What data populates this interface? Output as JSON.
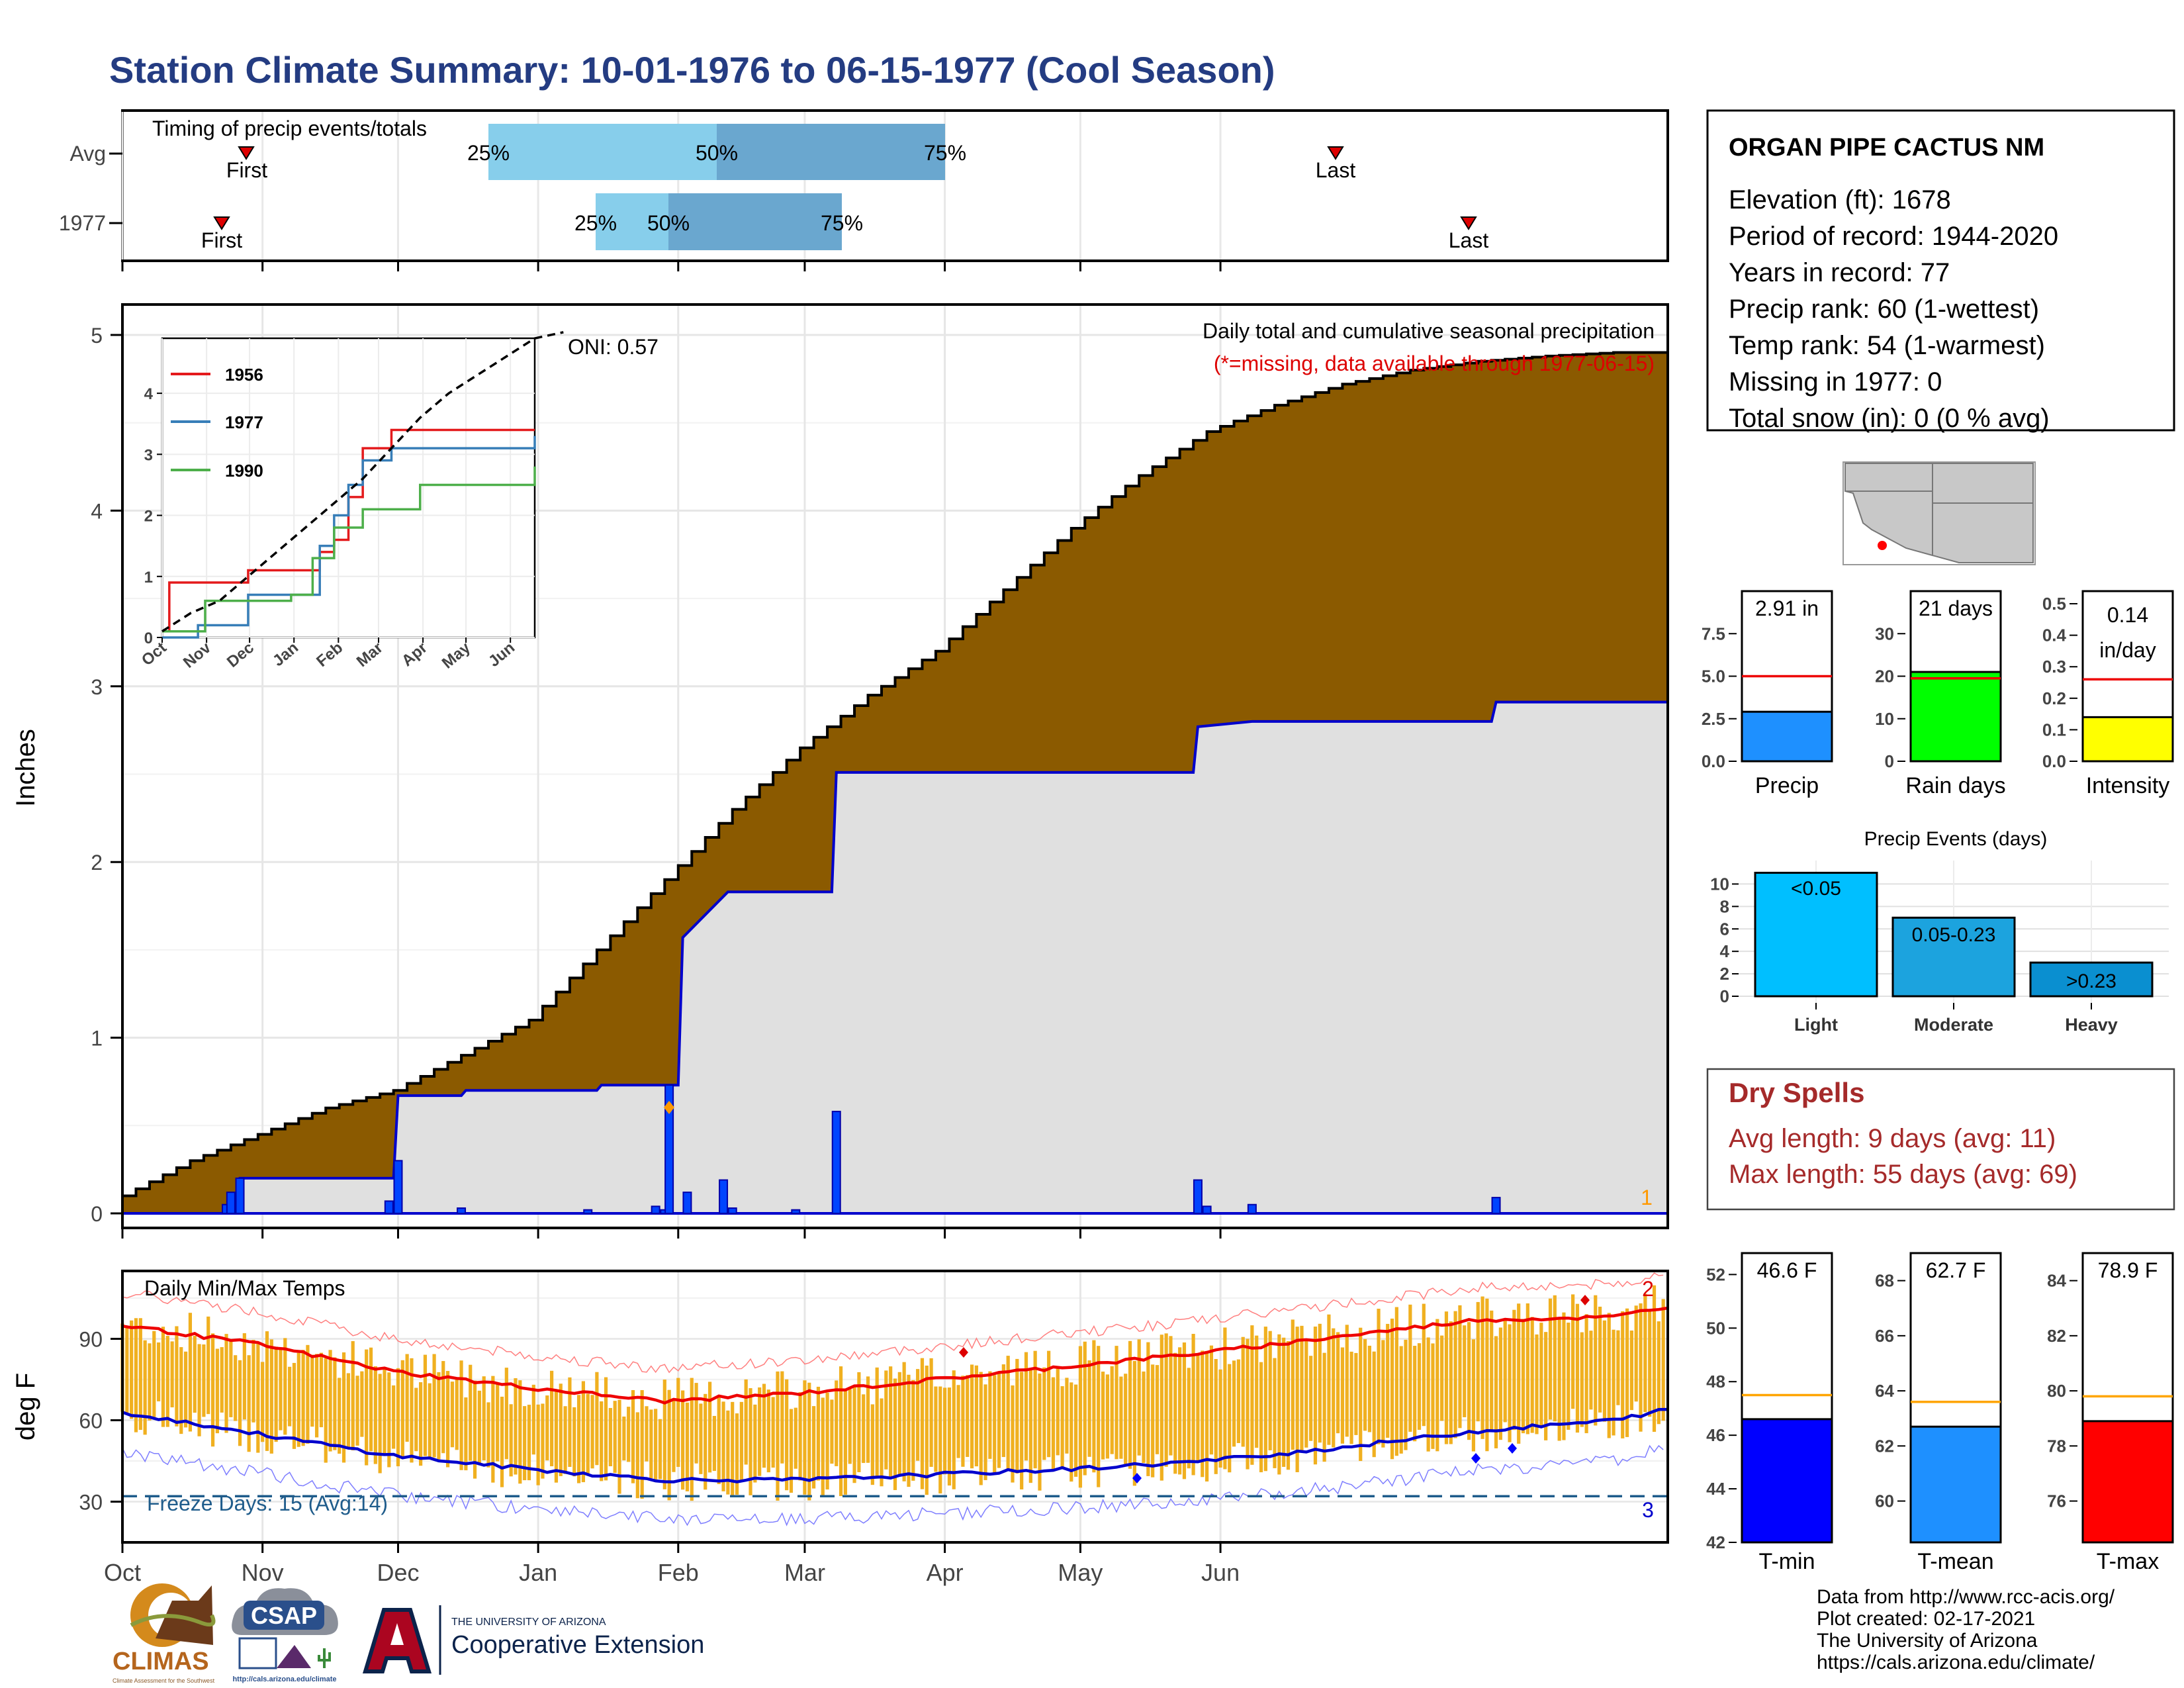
{
  "title": "Station Climate Summary: 10-01-1976 to 06-15-1977 (Cool Season)",
  "colors": {
    "title": "#243c82",
    "cum_fill": "#8b5a00",
    "cum_bg": "#e0e0e0",
    "station_line": "#0000cc",
    "daily_bar": "#0044ff",
    "temp_bar": "#f0b020",
    "tmax_line": "#ee0000",
    "tmin_line": "#0000cc",
    "dry_spell": "#a52a2a",
    "freeze": "#1f5c8b",
    "q1": "#87ceeb",
    "q2": "#6aa7cf"
  },
  "timing": {
    "title": "Timing of precip events/totals",
    "rows": [
      {
        "label": "Avg",
        "first": "First",
        "last": "Last",
        "p25": "25%",
        "p50": "50%",
        "p75": "75%"
      },
      {
        "label": "1977",
        "first": "First",
        "last": "Last",
        "p25": "25%",
        "p50": "50%",
        "p75": "75%"
      }
    ]
  },
  "main": {
    "ylabel": "Inches",
    "oni": "ONI: 0.57",
    "subtitle": "Daily total and cumulative seasonal precipitation",
    "missing_note": "(*=missing, data available through 1977-06-15)",
    "corner_count": "1",
    "yticks": [
      "0",
      "1",
      "2",
      "3",
      "4",
      "5"
    ]
  },
  "inset": {
    "legend": [
      "1956",
      "1977",
      "1990"
    ],
    "yticks": [
      "0",
      "1",
      "2",
      "3",
      "4"
    ],
    "xticks": [
      "Oct",
      "Nov",
      "Dec",
      "Jan",
      "Feb",
      "Mar",
      "Apr",
      "May",
      "Jun"
    ]
  },
  "temps": {
    "title": "Daily Min/Max Temps",
    "ylabel": "deg F",
    "freeze": "Freeze Days: 15 (Avg:14)",
    "count_top": "2",
    "count_bottom": "3",
    "yticks": [
      "30",
      "60",
      "90"
    ]
  },
  "months": [
    "Oct",
    "Nov",
    "Dec",
    "Jan",
    "Feb",
    "Mar",
    "Apr",
    "May",
    "Jun"
  ],
  "station": {
    "name": "ORGAN PIPE CACTUS NM",
    "lines": [
      "Elevation (ft): 1678",
      "Period of record: 1944-2020",
      "Years in record: 77",
      "Precip rank: 60 (1-wettest)",
      "Temp rank: 54 (1-warmest)",
      "Missing in 1977: 0",
      "Total snow (in): 0 (0 % avg)"
    ]
  },
  "mini_precip": {
    "label": "Precip",
    "value_label": "2.91 in",
    "ticks": [
      "0.0",
      "2.5",
      "5.0",
      "7.5"
    ],
    "color": "#1e90ff"
  },
  "mini_raindays": {
    "label": "Rain days",
    "value_label": "21 days",
    "ticks": [
      "0",
      "10",
      "20",
      "30"
    ],
    "color": "#00ff00"
  },
  "mini_intensity": {
    "label": "Intensity",
    "value_label": "0.14",
    "value_unit": "in/day",
    "ticks": [
      "0.0",
      "0.1",
      "0.2",
      "0.3",
      "0.4",
      "0.5"
    ],
    "color": "#ffff00"
  },
  "events": {
    "title": "Precip Events (days)",
    "ticks": [
      "0",
      "2",
      "4",
      "6",
      "8",
      "10"
    ],
    "bars": [
      {
        "cat": "Light",
        "label": "<0.05",
        "value": 11,
        "color": "#00bfff"
      },
      {
        "cat": "Moderate",
        "label": "0.05-0.23",
        "value": 7,
        "color": "#1ca3de"
      },
      {
        "cat": "Heavy",
        "label": ">0.23",
        "value": 3,
        "color": "#0a8fd0"
      }
    ]
  },
  "dry": {
    "title": "Dry Spells",
    "avg": "Avg length: 9 days (avg: 11)",
    "max": "Max length: 55 days (avg: 69)"
  },
  "tbars": [
    {
      "label": "T-min",
      "value_label": "46.6 F",
      "ticks": [
        "42",
        "44",
        "46",
        "48",
        "50",
        "52"
      ],
      "color": "#0000ff"
    },
    {
      "label": "T-mean",
      "value_label": "62.7 F",
      "ticks": [
        "60",
        "62",
        "64",
        "66",
        "68"
      ],
      "color": "#1e90ff"
    },
    {
      "label": "T-max",
      "value_label": "78.9 F",
      "ticks": [
        "76",
        "78",
        "80",
        "82",
        "84"
      ],
      "color": "#ff0000"
    }
  ],
  "credits": [
    "Data from http://www.rcc-acis.org/",
    "Plot created: 02-17-2021",
    "The University of Arizona",
    "https://cals.arizona.edu/climate/"
  ],
  "logos": {
    "climas": "CLIMAS",
    "climas_sub": "Climate Assessment for the Southwest",
    "csap": "CSAP",
    "csap_url": "http://cals.arizona.edu/climate",
    "ua_top": "THE UNIVERSITY OF ARIZONA",
    "ua_bottom": "Cooperative Extension"
  },
  "chart_data": [
    {
      "type": "area",
      "title": "Daily total and cumulative seasonal precipitation",
      "ylabel": "Inches",
      "ylim": [
        0,
        5.3
      ],
      "x": [
        "Oct",
        "Nov",
        "Dec",
        "Jan",
        "Feb",
        "Mar",
        "Apr",
        "May",
        "Jun"
      ],
      "series": [
        {
          "name": "Avg cumulative",
          "points": [
            [
              0,
              0.1
            ],
            [
              15,
              0.3
            ],
            [
              30,
              0.45
            ],
            [
              45,
              0.6
            ],
            [
              60,
              0.7
            ],
            [
              75,
              0.9
            ],
            [
              90,
              1.1
            ],
            [
              105,
              1.5
            ],
            [
              120,
              1.9
            ],
            [
              135,
              2.3
            ],
            [
              150,
              2.65
            ],
            [
              165,
              2.95
            ],
            [
              180,
              3.2
            ],
            [
              195,
              3.55
            ],
            [
              210,
              3.9
            ],
            [
              225,
              4.2
            ],
            [
              240,
              4.45
            ],
            [
              255,
              4.6
            ],
            [
              270,
              4.72
            ],
            [
              285,
              4.8
            ],
            [
              300,
              4.85
            ],
            [
              315,
              4.88
            ],
            [
              330,
              4.9
            ],
            [
              342,
              4.9
            ]
          ]
        },
        {
          "name": "1977 cumulative",
          "points": [
            [
              0,
              0
            ],
            [
              25,
              0
            ],
            [
              26,
              0.2
            ],
            [
              60,
              0.2
            ],
            [
              61,
              0.67
            ],
            [
              75,
              0.67
            ],
            [
              76,
              0.7
            ],
            [
              105,
              0.7
            ],
            [
              106,
              0.73
            ],
            [
              123,
              0.73
            ],
            [
              124,
              1.57
            ],
            [
              134,
              1.83
            ],
            [
              157,
              1.83
            ],
            [
              158,
              2.51
            ],
            [
              237,
              2.51
            ],
            [
              238,
              2.77
            ],
            [
              250,
              2.8
            ],
            [
              303,
              2.8
            ],
            [
              304,
              2.91
            ],
            [
              342,
              2.91
            ]
          ]
        },
        {
          "name": "Daily precip",
          "points": [
            [
              23,
              0.05
            ],
            [
              24,
              0.12
            ],
            [
              26,
              0.2
            ],
            [
              59,
              0.07
            ],
            [
              61,
              0.3
            ],
            [
              75,
              0.03
            ],
            [
              103,
              0.02
            ],
            [
              118,
              0.04
            ],
            [
              120,
              0.02
            ],
            [
              121,
              0.73
            ],
            [
              125,
              0.12
            ],
            [
              133,
              0.19
            ],
            [
              135,
              0.03
            ],
            [
              149,
              0.02
            ],
            [
              158,
              0.58
            ],
            [
              238,
              0.19
            ],
            [
              240,
              0.04
            ],
            [
              250,
              0.05
            ],
            [
              304,
              0.09
            ]
          ]
        }
      ]
    },
    {
      "type": "line",
      "title": "Daily Min/Max Temps",
      "ylabel": "deg F",
      "ylim": [
        15,
        115
      ],
      "series": [
        {
          "name": "Avg Tmax",
          "points": [
            [
              0,
              95
            ],
            [
              30,
              88
            ],
            [
              60,
              78
            ],
            [
              90,
              72
            ],
            [
              120,
              67
            ],
            [
              150,
              70
            ],
            [
              180,
              75
            ],
            [
              210,
              80
            ],
            [
              240,
              85
            ],
            [
              270,
              91
            ],
            [
              300,
              97
            ],
            [
              330,
              98
            ],
            [
              342,
              102
            ]
          ]
        },
        {
          "name": "Avg Tmin",
          "points": [
            [
              0,
              63
            ],
            [
              30,
              55
            ],
            [
              60,
              47
            ],
            [
              90,
              42
            ],
            [
              120,
              38
            ],
            [
              150,
              38
            ],
            [
              180,
              40
            ],
            [
              210,
              42
            ],
            [
              240,
              45
            ],
            [
              270,
              50
            ],
            [
              300,
              56
            ],
            [
              330,
              60
            ],
            [
              342,
              64
            ]
          ]
        },
        {
          "name": "Freeze threshold",
          "points": [
            [
              0,
              32
            ],
            [
              342,
              32
            ]
          ]
        }
      ]
    },
    {
      "type": "line",
      "title": "",
      "x": [
        "Oct",
        "Nov",
        "Dec",
        "Jan",
        "Feb",
        "Mar",
        "Apr",
        "May",
        "Jun"
      ],
      "ylim": [
        0,
        5
      ],
      "series": [
        {
          "name": "1956",
          "points": [
            [
              0,
              0.1
            ],
            [
              5,
              0.9
            ],
            [
              40,
              0.9
            ],
            [
              60,
              1.1
            ],
            [
              100,
              1.1
            ],
            [
              110,
              1.4
            ],
            [
              120,
              1.6
            ],
            [
              130,
              2.3
            ],
            [
              140,
              3.1
            ],
            [
              160,
              3.4
            ],
            [
              240,
              3.4
            ],
            [
              260,
              3.4
            ]
          ]
        },
        {
          "name": "1977",
          "points": [
            [
              0,
              0
            ],
            [
              25,
              0.2
            ],
            [
              60,
              0.7
            ],
            [
              100,
              0.7
            ],
            [
              110,
              1.5
            ],
            [
              120,
              2.0
            ],
            [
              130,
              2.5
            ],
            [
              140,
              2.9
            ],
            [
              160,
              3.1
            ],
            [
              240,
              3.1
            ],
            [
              260,
              3.3
            ]
          ]
        },
        {
          "name": "1990",
          "points": [
            [
              0,
              0.1
            ],
            [
              30,
              0.6
            ],
            [
              90,
              0.7
            ],
            [
              105,
              1.3
            ],
            [
              120,
              1.8
            ],
            [
              140,
              2.1
            ],
            [
              180,
              2.5
            ],
            [
              260,
              2.8
            ]
          ]
        },
        {
          "name": "Avg",
          "points": [
            [
              0,
              0.1
            ],
            [
              20,
              0.4
            ],
            [
              40,
              0.6
            ],
            [
              60,
              1.0
            ],
            [
              80,
              1.4
            ],
            [
              100,
              1.8
            ],
            [
              120,
              2.2
            ],
            [
              140,
              2.6
            ],
            [
              160,
              3.1
            ],
            [
              180,
              3.6
            ],
            [
              200,
              4.0
            ],
            [
              220,
              4.3
            ],
            [
              240,
              4.6
            ],
            [
              260,
              4.9
            ],
            [
              280,
              5.0
            ]
          ]
        }
      ]
    },
    {
      "type": "bar",
      "title": "Precip Events (days)",
      "categories": [
        "Light",
        "Moderate",
        "Heavy"
      ],
      "values": [
        11,
        7,
        3
      ],
      "ylim": [
        0,
        11.5
      ]
    },
    {
      "type": "bar",
      "categories": [
        "Precip",
        "Rain days",
        "Intensity"
      ],
      "values": [
        2.91,
        21,
        0.14
      ],
      "averages": [
        5.0,
        19.5,
        0.26
      ]
    },
    {
      "type": "bar",
      "categories": [
        "T-min",
        "T-mean",
        "T-max"
      ],
      "values": [
        46.6,
        62.7,
        78.9
      ],
      "averages": [
        47.5,
        63.6,
        79.8
      ]
    }
  ]
}
